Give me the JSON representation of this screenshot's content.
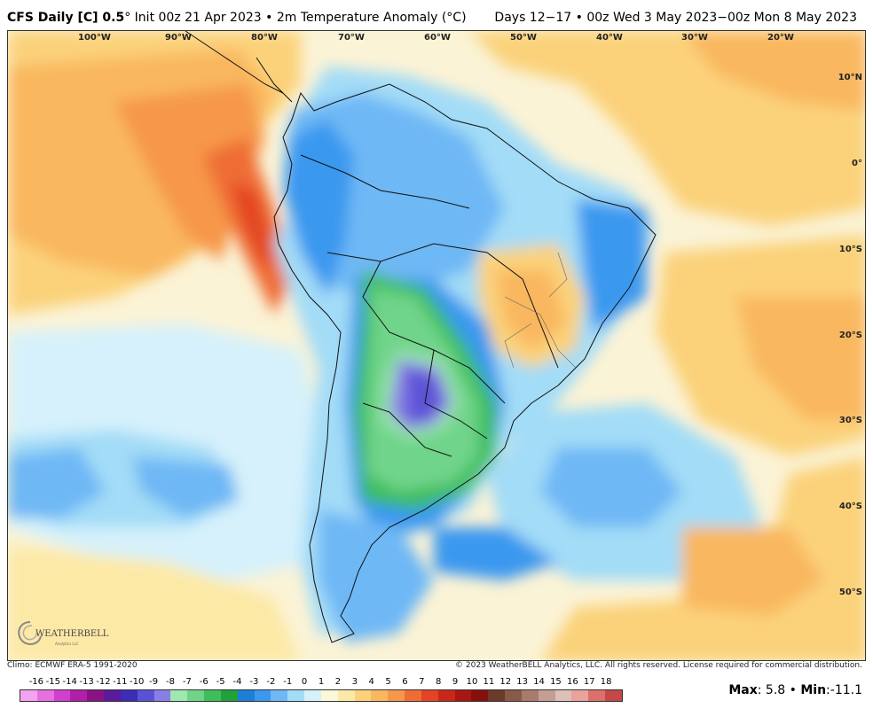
{
  "header": {
    "model": "CFS Daily [C] 0.5",
    "degree_mark": "°",
    "init": "Init 00z 21 Apr 2023",
    "bullet": "•",
    "product": "2m Temperature Anomaly (°C)",
    "period": "Days 12−17 • 00z Wed 3 May 2023−00z Mon 8 May 2023"
  },
  "longitudes": [
    "100°W",
    "90°W",
    "80°W",
    "70°W",
    "60°W",
    "50°W",
    "40°W",
    "30°W",
    "20°W"
  ],
  "latitudes": [
    "10°N",
    "0°",
    "10°S",
    "20°S",
    "30°S",
    "40°S",
    "50°S"
  ],
  "footer": {
    "climo": "Climo: ECMWF ERA-5 1991-2020",
    "copyright": "© 2023 WeatherBELL Analytics, LLC. All rights reserved. License required for commercial distribution."
  },
  "colorbar": {
    "labels": [
      "-16",
      "-15",
      "-14",
      "-13",
      "-12",
      "-11",
      "-10",
      "-9",
      "-8",
      "-7",
      "-6",
      "-5",
      "-4",
      "-3",
      "-2",
      "-1",
      "0",
      "1",
      "2",
      "3",
      "4",
      "5",
      "6",
      "7",
      "8",
      "9",
      "10",
      "11",
      "12",
      "13",
      "14",
      "15",
      "16",
      "17",
      "18"
    ],
    "colors": [
      "#f5a3f0",
      "#e86fe0",
      "#d23fcf",
      "#b21ea8",
      "#8a1284",
      "#5a1a9a",
      "#3c2cb8",
      "#5a52d6",
      "#8a7ee6",
      "#9fe6b0",
      "#6fd48a",
      "#3ebd5c",
      "#1fa23a",
      "#1b7fd8",
      "#3a98ef",
      "#6eb8f5",
      "#a3dcf7",
      "#d6f1fb",
      "#fbf7d9",
      "#fde9a6",
      "#fbd27a",
      "#f9b75e",
      "#f6974a",
      "#ef6d34",
      "#e34424",
      "#c92818",
      "#a81712",
      "#86100c",
      "#6b3a2b",
      "#8a5a48",
      "#a87c6c",
      "#c49e92",
      "#ddc0b8",
      "#e9a29c",
      "#dd6f6a",
      "#c64747"
    ]
  },
  "stats": {
    "max_label": "Max",
    "max": "5.8",
    "min_label": "Min",
    "min": "-11.1"
  },
  "logo": {
    "name": "WEATHERBELL",
    "sub": "Analytics LLC"
  }
}
